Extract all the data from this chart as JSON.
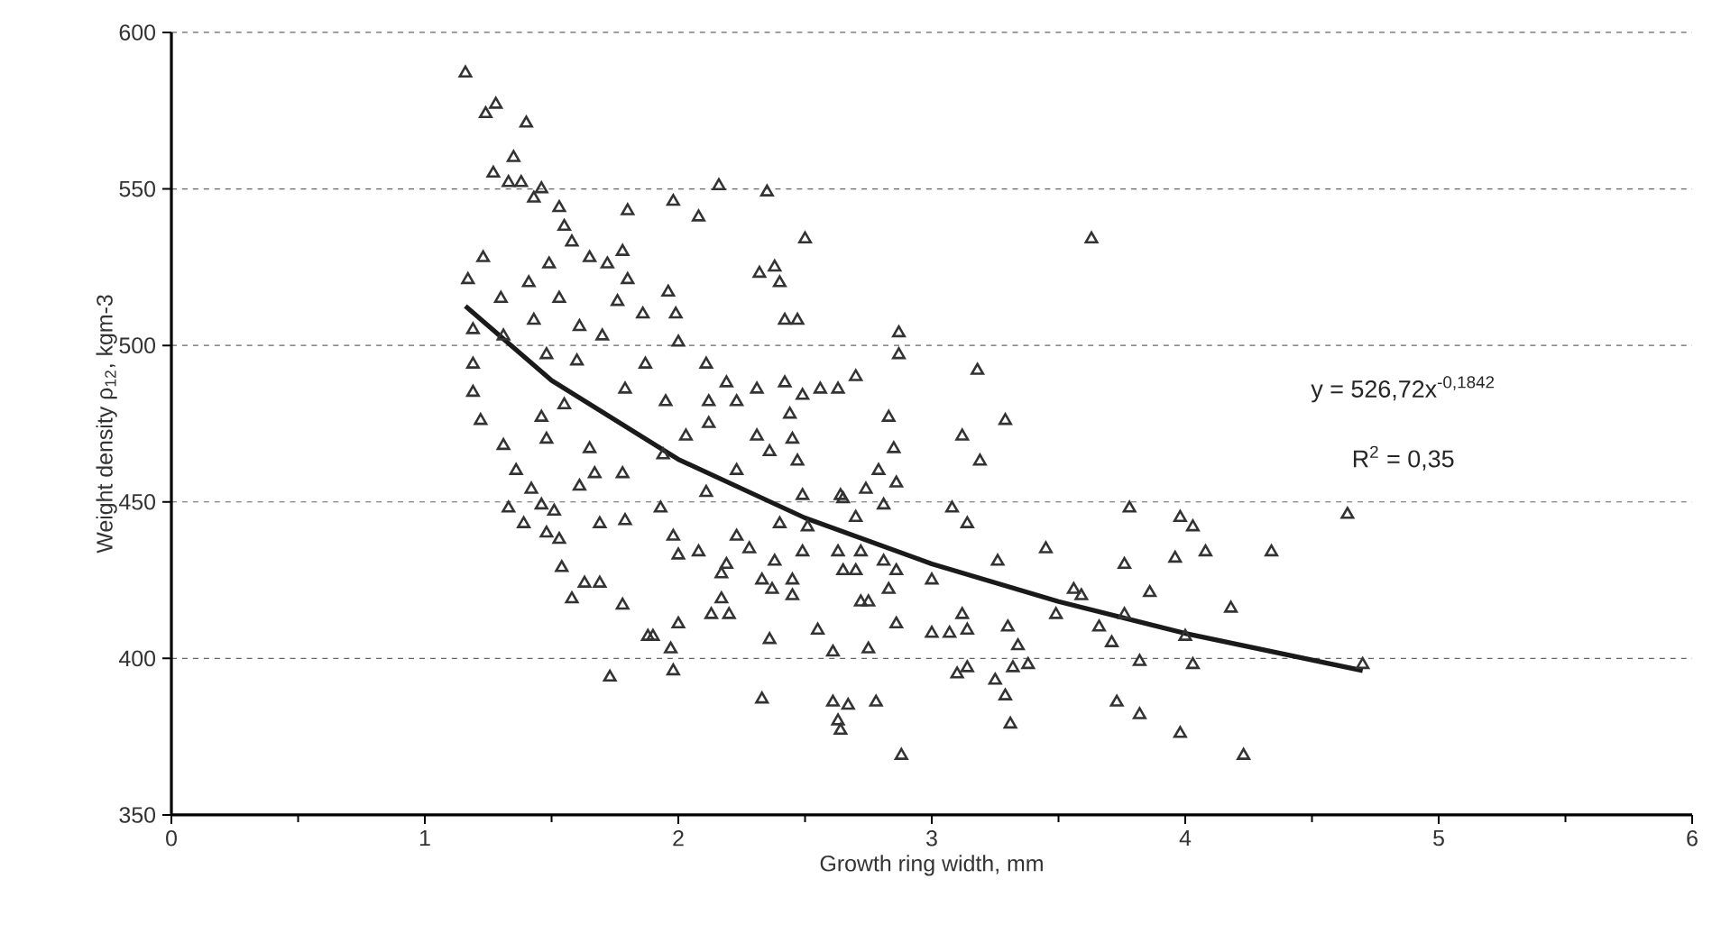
{
  "chart_data": {
    "type": "scatter",
    "xlabel": "Growth ring width, mm",
    "ylabel": "Weight density ρ$_{12}$, kgm-3",
    "xlim": [
      0,
      6
    ],
    "xticks": [
      0,
      1,
      2,
      3,
      4,
      5,
      6
    ],
    "ylim": [
      350,
      600
    ],
    "yticks": [
      350,
      400,
      450,
      500,
      550,
      600
    ],
    "grid": "y",
    "annotations": [
      "y = 526,72x$^{-0,1842}$",
      "R$^{2}$ = 0,35"
    ],
    "series": [
      {
        "color": "#333333",
        "marker": "triangle",
        "x": [
          1.16,
          1.24,
          1.28,
          1.4,
          1.35,
          1.27,
          1.33,
          1.38,
          1.46,
          1.43,
          1.53,
          1.55,
          1.58,
          1.8,
          1.23,
          1.17,
          1.3,
          1.41,
          1.49,
          1.53,
          1.65,
          1.72,
          1.78,
          1.8,
          1.76,
          1.86,
          1.19,
          1.43,
          1.61,
          1.7,
          1.19,
          1.31,
          1.48,
          1.6,
          1.19,
          1.22,
          1.46,
          1.55,
          1.79,
          1.87,
          1.31,
          1.36,
          1.42,
          1.33,
          1.39,
          1.46,
          1.51,
          1.48,
          1.53,
          1.61,
          1.67,
          1.78,
          1.69,
          1.79,
          1.48,
          1.65,
          1.54,
          1.63,
          1.69,
          1.58,
          1.78,
          1.88,
          1.73,
          1.98,
          2.16,
          2.08,
          2.35,
          2.5,
          3.63,
          2.32,
          2.38,
          2.4,
          2.42,
          2.47,
          1.96,
          1.99,
          2.0,
          2.87,
          2.87,
          3.18,
          2.83,
          3.29,
          3.12,
          3.19,
          2.85,
          2.79,
          2.86,
          2.74,
          2.11,
          2.31,
          2.42,
          2.56,
          2.63,
          2.7,
          2.49,
          2.19,
          2.12,
          2.23,
          2.44,
          2.45,
          2.12,
          2.31,
          2.36,
          2.47,
          1.95,
          2.03,
          1.94,
          2.23,
          2.64,
          1.93,
          2.11,
          2.49,
          2.65,
          2.81,
          3.08,
          3.14,
          3.78,
          2.4,
          2.51,
          2.7,
          1.98,
          2.08,
          2.0,
          2.23,
          2.28,
          2.19,
          2.38,
          2.49,
          2.63,
          2.81,
          2.86,
          2.72,
          3.0,
          3.26,
          3.45,
          3.76,
          3.86,
          2.17,
          2.33,
          2.45,
          2.65,
          2.7,
          2.17,
          2.37,
          2.45,
          2.83,
          2.72,
          2.75,
          3.56,
          3.59,
          3.49,
          3.76,
          2.13,
          2.2,
          2.0,
          2.36,
          2.55,
          2.86,
          3.0,
          3.07,
          3.12,
          3.14,
          3.3,
          3.34,
          1.9,
          1.97,
          1.98,
          2.61,
          2.75,
          3.66,
          3.71,
          3.82,
          3.1,
          3.14,
          3.25,
          3.32,
          3.38,
          3.29,
          2.33,
          2.61,
          2.67,
          2.63,
          2.64,
          2.78,
          3.31,
          2.88,
          3.73,
          3.82,
          3.98,
          4.03,
          4.64,
          3.96,
          4.08,
          4.34,
          4.18,
          4.0,
          4.03,
          4.7,
          3.98,
          4.23
        ],
        "values": [
          587,
          574,
          577,
          571,
          560,
          555,
          552,
          552,
          550,
          547,
          544,
          538,
          533,
          543,
          528,
          521,
          515,
          520,
          526,
          515,
          528,
          526,
          530,
          521,
          514,
          510,
          505,
          508,
          506,
          503,
          494,
          503,
          497,
          495,
          485,
          476,
          477,
          481,
          486,
          494,
          468,
          460,
          454,
          448,
          443,
          449,
          447,
          440,
          438,
          455,
          459,
          459,
          443,
          444,
          470,
          467,
          429,
          424,
          424,
          419,
          417,
          407,
          394,
          546,
          551,
          541,
          549,
          534,
          534,
          523,
          525,
          520,
          508,
          508,
          517,
          510,
          501,
          504,
          497,
          492,
          477,
          476,
          471,
          463,
          467,
          460,
          456,
          454,
          494,
          486,
          488,
          486,
          486,
          490,
          484,
          488,
          482,
          482,
          478,
          470,
          475,
          471,
          466,
          463,
          482,
          471,
          465,
          460,
          452,
          448,
          453,
          452,
          451,
          449,
          448,
          443,
          448,
          443,
          442,
          445,
          439,
          434,
          433,
          439,
          435,
          430,
          431,
          434,
          434,
          431,
          428,
          434,
          425,
          431,
          435,
          430,
          421,
          427,
          425,
          425,
          428,
          428,
          419,
          422,
          420,
          422,
          418,
          418,
          422,
          420,
          414,
          414,
          414,
          414,
          411,
          406,
          409,
          411,
          408,
          408,
          414,
          409,
          410,
          404,
          407,
          403,
          396,
          402,
          403,
          410,
          405,
          399,
          395,
          397,
          393,
          397,
          398,
          388,
          387,
          386,
          385,
          380,
          377,
          386,
          379,
          369,
          386,
          382,
          445,
          442,
          446,
          432,
          434,
          434,
          416,
          407,
          398,
          398,
          376,
          369
        ]
      },
      {
        "type": "line",
        "color": "#1a1a1a",
        "marker": "none",
        "line_style": "solid",
        "x": [
          1.16,
          1.5,
          2,
          2.5,
          3,
          3.5,
          4,
          4.7
        ],
        "values": [
          512.6,
          488.8,
          463.6,
          444.9,
          430.2,
          418.2,
          408.0,
          396.1
        ]
      }
    ]
  }
}
